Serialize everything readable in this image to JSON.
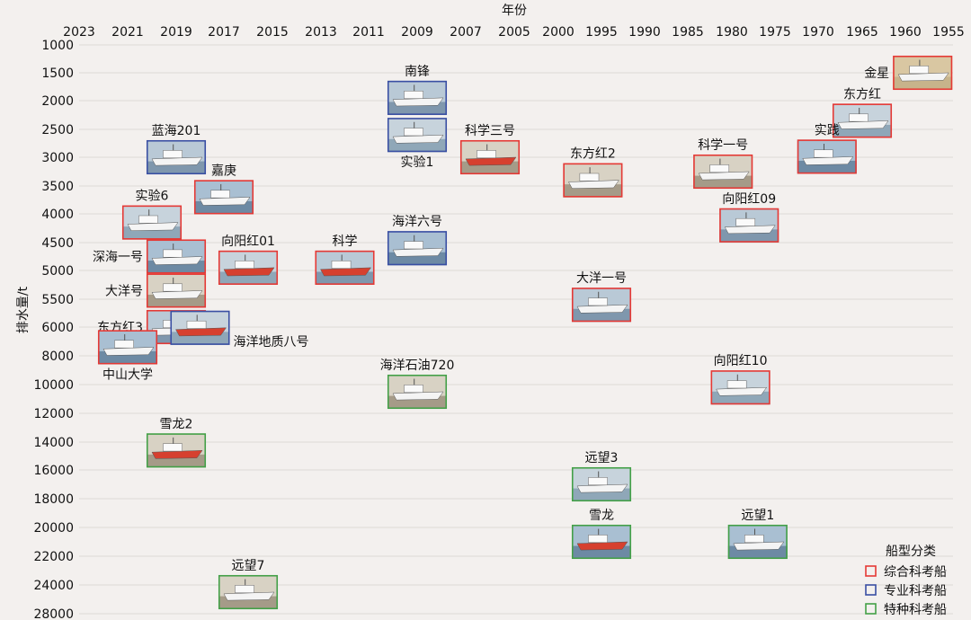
{
  "chart_data": {
    "type": "scatter",
    "xlabel": "年份",
    "ylabel": "排水量/t",
    "legend": {
      "title": "船型分类",
      "placement": "bottom-right",
      "items": [
        {
          "name": "综合科考船",
          "color": "#e53935"
        },
        {
          "name": "专业科考船",
          "color": "#3a4fa3"
        },
        {
          "name": "特种科考船",
          "color": "#43a047"
        }
      ]
    },
    "x_ticks": [
      "2023",
      "2021",
      "2019",
      "2017",
      "2015",
      "2013",
      "2011",
      "2009",
      "2007",
      "2005",
      "2000",
      "1995",
      "1990",
      "1985",
      "1980",
      "1975",
      "1970",
      "1965",
      "1960",
      "1955"
    ],
    "y_ticks": [
      "1000",
      "1500",
      "2000",
      "2500",
      "3000",
      "3500",
      "4000",
      "4500",
      "5000",
      "5500",
      "6000",
      "8000",
      "10000",
      "12000",
      "14000",
      "16000",
      "18000",
      "20000",
      "22000",
      "24000",
      "28000"
    ],
    "ships": [
      {
        "name": "金星",
        "year": 1958,
        "displacement": 1500,
        "category": "综合科考船"
      },
      {
        "name": "东方红",
        "year": 1965,
        "displacement": 2350,
        "category": "综合科考船"
      },
      {
        "name": "实践",
        "year": 1969,
        "displacement": 2990,
        "category": "综合科考船"
      },
      {
        "name": "科学一号",
        "year": 1981,
        "displacement": 3250,
        "category": "综合科考船"
      },
      {
        "name": "向阳红09",
        "year": 1978,
        "displacement": 4200,
        "category": "综合科考船"
      },
      {
        "name": "向阳红10",
        "year": 1979,
        "displacement": 10200,
        "category": "综合科考船"
      },
      {
        "name": "远望1",
        "year": 1977,
        "displacement": 21000,
        "category": "特种科考船"
      },
      {
        "name": "东方红2",
        "year": 1996,
        "displacement": 3400,
        "category": "综合科考船"
      },
      {
        "name": "大洋一号",
        "year": 1995,
        "displacement": 5600,
        "category": "综合科考船"
      },
      {
        "name": "远望3",
        "year": 1995,
        "displacement": 17000,
        "category": "特种科考船"
      },
      {
        "name": "雪龙",
        "year": 1995,
        "displacement": 21000,
        "category": "特种科考船"
      },
      {
        "name": "科学三号",
        "year": 2006,
        "displacement": 3000,
        "category": "综合科考船"
      },
      {
        "name": "南锋",
        "year": 2009,
        "displacement": 1950,
        "category": "专业科考船"
      },
      {
        "name": "实验1",
        "year": 2009,
        "displacement": 2600,
        "category": "专业科考船"
      },
      {
        "name": "海洋六号",
        "year": 2009,
        "displacement": 4600,
        "category": "专业科考船"
      },
      {
        "name": "海洋石油720",
        "year": 2009,
        "displacement": 10500,
        "category": "特种科考船"
      },
      {
        "name": "科学",
        "year": 2012,
        "displacement": 4950,
        "category": "综合科考船"
      },
      {
        "name": "向阳红01",
        "year": 2016,
        "displacement": 4950,
        "category": "综合科考船"
      },
      {
        "name": "嘉庚",
        "year": 2017,
        "displacement": 3700,
        "category": "综合科考船"
      },
      {
        "name": "远望7",
        "year": 2016,
        "displacement": 25000,
        "category": "特种科考船"
      },
      {
        "name": "蓝海201",
        "year": 2019,
        "displacement": 3000,
        "category": "专业科考船"
      },
      {
        "name": "实验6",
        "year": 2020,
        "displacement": 4150,
        "category": "综合科考船"
      },
      {
        "name": "深海一号",
        "year": 2019,
        "displacement": 4750,
        "category": "综合科考船"
      },
      {
        "name": "大洋号",
        "year": 2019,
        "displacement": 5350,
        "category": "综合科考船"
      },
      {
        "name": "东方红3",
        "year": 2019,
        "displacement": 6000,
        "category": "综合科考船"
      },
      {
        "name": "海洋地质八号",
        "year": 2018,
        "displacement": 6050,
        "category": "专业科考船"
      },
      {
        "name": "中山大学",
        "year": 2021,
        "displacement": 7400,
        "category": "综合科考船"
      },
      {
        "name": "雪龙2",
        "year": 2019,
        "displacement": 14600,
        "category": "特种科考船"
      }
    ]
  }
}
